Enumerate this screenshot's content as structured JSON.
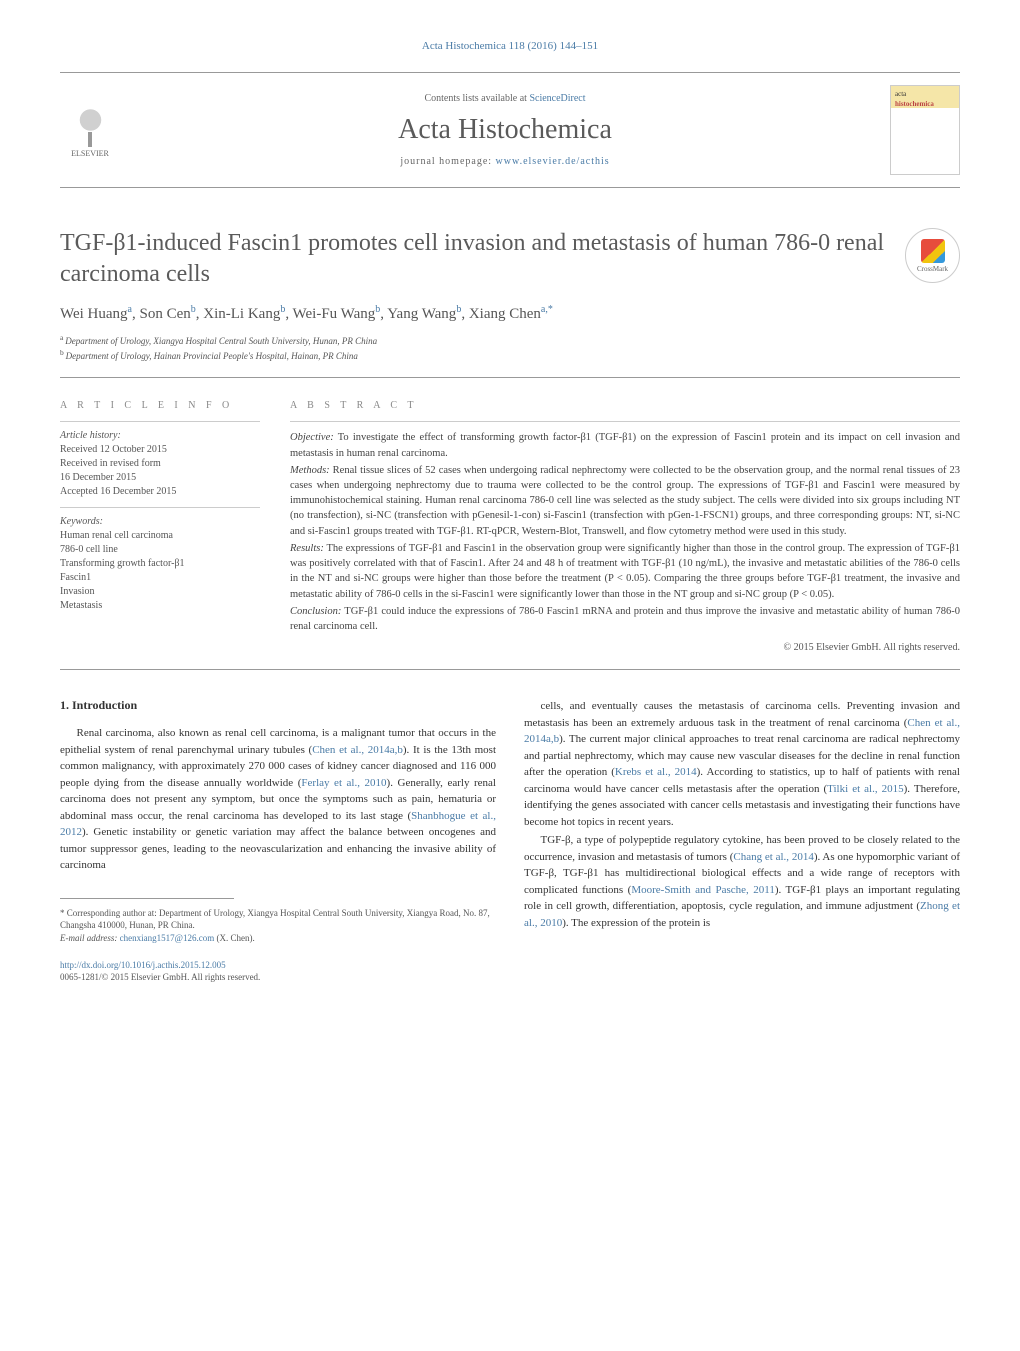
{
  "journal_ref_top": "Acta Histochemica 118 (2016) 144–151",
  "header": {
    "contents_prefix": "Contents lists available at ",
    "contents_link": "ScienceDirect",
    "journal_title": "Acta Histochemica",
    "homepage_prefix": "journal homepage: ",
    "homepage_link": "www.elsevier.de/acthis",
    "elsevier_label": "ELSEVIER",
    "cover_top": "acta",
    "cover_sub": "histochemica"
  },
  "crossmark_label": "CrossMark",
  "article_title": "TGF-β1-induced Fascin1 promotes cell invasion and metastasis of human 786-0 renal carcinoma cells",
  "authors_html": "Wei Huang|a|, Son Cen|b|, Xin-Li Kang|b|, Wei-Fu Wang|b|, Yang Wang|b|, Xiang Chen|a,*|",
  "affiliations": [
    {
      "sup": "a",
      "text": "Department of Urology, Xiangya Hospital Central South University, Hunan, PR China"
    },
    {
      "sup": "b",
      "text": "Department of Urology, Hainan Provincial People's Hospital, Hainan, PR China"
    }
  ],
  "article_info": {
    "heading": "a r t i c l e   i n f o",
    "history_label": "Article history:",
    "history": [
      "Received 12 October 2015",
      "Received in revised form",
      "16 December 2015",
      "Accepted 16 December 2015"
    ],
    "keywords_label": "Keywords:",
    "keywords": [
      "Human renal cell carcinoma",
      "786-0 cell line",
      "Transforming growth factor-β1",
      "Fascin1",
      "Invasion",
      "Metastasis"
    ]
  },
  "abstract": {
    "heading": "a b s t r a c t",
    "paras": [
      {
        "label": "Objective:",
        "text": " To investigate the effect of transforming growth factor-β1 (TGF-β1) on the expression of Fascin1 protein and its impact on cell invasion and metastasis in human renal carcinoma."
      },
      {
        "label": "Methods:",
        "text": " Renal tissue slices of 52 cases when undergoing radical nephrectomy were collected to be the observation group, and the normal renal tissues of 23 cases when undergoing nephrectomy due to trauma were collected to be the control group. The expressions of TGF-β1 and Fascin1 were measured by immunohistochemical staining. Human renal carcinoma 786-0 cell line was selected as the study subject. The cells were divided into six groups including NT (no transfection), si-NC (transfection with pGenesil-1-con) si-Fascin1 (transfection with pGen-1-FSCN1) groups, and three corresponding groups: NT, si-NC and si-Fascin1 groups treated with TGF-β1. RT-qPCR, Western-Blot, Transwell, and flow cytometry method were used in this study."
      },
      {
        "label": "Results:",
        "text": " The expressions of TGF-β1 and Fascin1 in the observation group were significantly higher than those in the control group. The expression of TGF-β1 was positively correlated with that of Fascin1. After 24 and 48 h of treatment with TGF-β1 (10 ng/mL), the invasive and metastatic abilities of the 786-0 cells in the NT and si-NC groups were higher than those before the treatment (P < 0.05). Comparing the three groups before TGF-β1 treatment, the invasive and metastatic ability of 786-0 cells in the si-Fascin1 were significantly lower than those in the NT group and si-NC group (P < 0.05)."
      },
      {
        "label": "Conclusion:",
        "text": " TGF-β1 could induce the expressions of 786-0 Fascin1 mRNA and protein and thus improve the invasive and metastatic ability of human 786-0 renal carcinoma cell."
      }
    ],
    "copyright": "© 2015 Elsevier GmbH. All rights reserved."
  },
  "section1_heading": "1. Introduction",
  "body": {
    "col1": [
      "Renal carcinoma, also known as renal cell carcinoma, is a malignant tumor that occurs in the epithelial system of renal parenchymal urinary tubules (|Chen et al., 2014a,b|). It is the 13th most common malignancy, with approximately 270 000 cases of kidney cancer diagnosed and 116 000 people dying from the disease annually worldwide (|Ferlay et al., 2010|). Generally, early renal carcinoma does not present any symptom, but once the symptoms such as pain, hematuria or abdominal mass occur, the renal carcinoma has developed to its last stage (|Shanbhogue et al., 2012|). Genetic instability or genetic variation may affect the balance between oncogenes and tumor suppressor genes, leading to the neovascularization and enhancing the invasive ability of carcinoma"
    ],
    "col2": [
      "cells, and eventually causes the metastasis of carcinoma cells. Preventing invasion and metastasis has been an extremely arduous task in the treatment of renal carcinoma (|Chen et al., 2014a,b|). The current major clinical approaches to treat renal carcinoma are radical nephrectomy and partial nephrectomy, which may cause new vascular diseases for the decline in renal function after the operation (|Krebs et al., 2014|). According to statistics, up to half of patients with renal carcinoma would have cancer cells metastasis after the operation (|Tilki et al., 2015|). Therefore, identifying the genes associated with cancer cells metastasis and investigating their functions have become hot topics in recent years.",
      "TGF-β, a type of polypeptide regulatory cytokine, has been proved to be closely related to the occurrence, invasion and metastasis of tumors (|Chang et al., 2014|). As one hypomorphic variant of TGF-β, TGF-β1 has multidirectional biological effects and a wide range of receptors with complicated functions (|Moore-Smith and Pasche, 2011|). TGF-β1 plays an important regulating role in cell growth, differentiation, apoptosis, cycle regulation, and immune adjustment (|Zhong et al., 2010|). The expression of the protein is"
    ]
  },
  "footnote": {
    "corr": "* Corresponding author at: Department of Urology, Xiangya Hospital Central South University, Xiangya Road, No. 87, Changsha 410000, Hunan, PR China.",
    "email_label": "E-mail address: ",
    "email": "chenxiang1517@126.com",
    "email_suffix": " (X. Chen)."
  },
  "doi": {
    "link": "http://dx.doi.org/10.1016/j.acthis.2015.12.005",
    "issn_line": "0065-1281/© 2015 Elsevier GmbH. All rights reserved."
  },
  "colors": {
    "link": "#4a7ba6",
    "text": "#333333",
    "muted": "#555555",
    "rule": "#999999"
  }
}
